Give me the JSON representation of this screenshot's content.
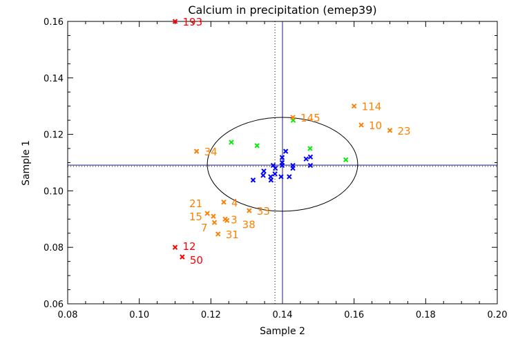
{
  "chart_data": {
    "type": "scatter",
    "title": "Calcium in precipitation (emep39)",
    "xlabel": "Sample 2",
    "ylabel": "Sample 1",
    "xlim": [
      0.08,
      0.2
    ],
    "ylim": [
      0.06,
      0.16
    ],
    "xticks": [
      "0.08",
      "0.10",
      "0.12",
      "0.14",
      "0.16",
      "0.18",
      "0.20"
    ],
    "yticks": [
      "0.06",
      "0.08",
      "0.10",
      "0.12",
      "0.14",
      "0.16"
    ],
    "grid": false,
    "colors": {
      "blue": "#0000ff",
      "green": "#00ee00",
      "orange": "#ff8000",
      "red": "#ff0000",
      "axis": "#000000"
    },
    "reference_lines": {
      "solid_x": 0.14,
      "solid_y": 0.1091,
      "dotted_x": 0.1379,
      "dotted_y": 0.1087
    },
    "ellipse": {
      "cx": 0.14,
      "cy": 0.1094,
      "rx": 0.021,
      "ry": 0.0166
    },
    "series": [
      {
        "color": "blue",
        "points": [
          [
            0.1409,
            0.114
          ],
          [
            0.1399,
            0.1118
          ],
          [
            0.1399,
            0.11
          ],
          [
            0.1399,
            0.109
          ],
          [
            0.1374,
            0.109
          ],
          [
            0.138,
            0.108
          ],
          [
            0.1429,
            0.109
          ],
          [
            0.1429,
            0.108
          ],
          [
            0.1478,
            0.112
          ],
          [
            0.1466,
            0.1113
          ],
          [
            0.1478,
            0.109
          ],
          [
            0.1348,
            0.107
          ],
          [
            0.1346,
            0.1055
          ],
          [
            0.1367,
            0.105
          ],
          [
            0.1379,
            0.106
          ],
          [
            0.1396,
            0.105
          ],
          [
            0.1419,
            0.105
          ],
          [
            0.1318,
            0.1038
          ],
          [
            0.1368,
            0.1038
          ]
        ]
      },
      {
        "color": "green",
        "points": [
          [
            0.1257,
            0.1172
          ],
          [
            0.1329,
            0.116
          ],
          [
            0.1477,
            0.115
          ],
          [
            0.1577,
            0.111
          ],
          [
            0.143,
            0.125
          ]
        ]
      },
      {
        "color": "orange",
        "points": [
          {
            "x": 0.1429,
            "y": 0.126,
            "label": "145"
          },
          {
            "x": 0.16,
            "y": 0.13,
            "label": "114"
          },
          {
            "x": 0.162,
            "y": 0.1233,
            "label": "10"
          },
          {
            "x": 0.17,
            "y": 0.1214,
            "label": "23"
          },
          {
            "x": 0.116,
            "y": 0.114,
            "label": "34"
          },
          {
            "x": 0.1236,
            "y": 0.096,
            "label": "4"
          },
          {
            "x": 0.1307,
            "y": 0.093,
            "label": "33"
          },
          {
            "x": 0.119,
            "y": 0.092,
            "label": "21"
          },
          {
            "x": 0.1207,
            "y": 0.091,
            "label": "15"
          },
          {
            "x": 0.121,
            "y": 0.0888,
            "label": "7"
          },
          {
            "x": 0.124,
            "y": 0.09,
            "label": "3"
          },
          {
            "x": 0.1245,
            "y": 0.0895,
            "label": "38"
          },
          {
            "x": 0.122,
            "y": 0.0847,
            "label": "31"
          }
        ]
      },
      {
        "color": "red",
        "points": [
          {
            "x": 0.11,
            "y": 0.16,
            "label": "193"
          },
          {
            "x": 0.11,
            "y": 0.08,
            "label": "12"
          },
          {
            "x": 0.112,
            "y": 0.0766,
            "label": "50"
          }
        ]
      }
    ]
  }
}
